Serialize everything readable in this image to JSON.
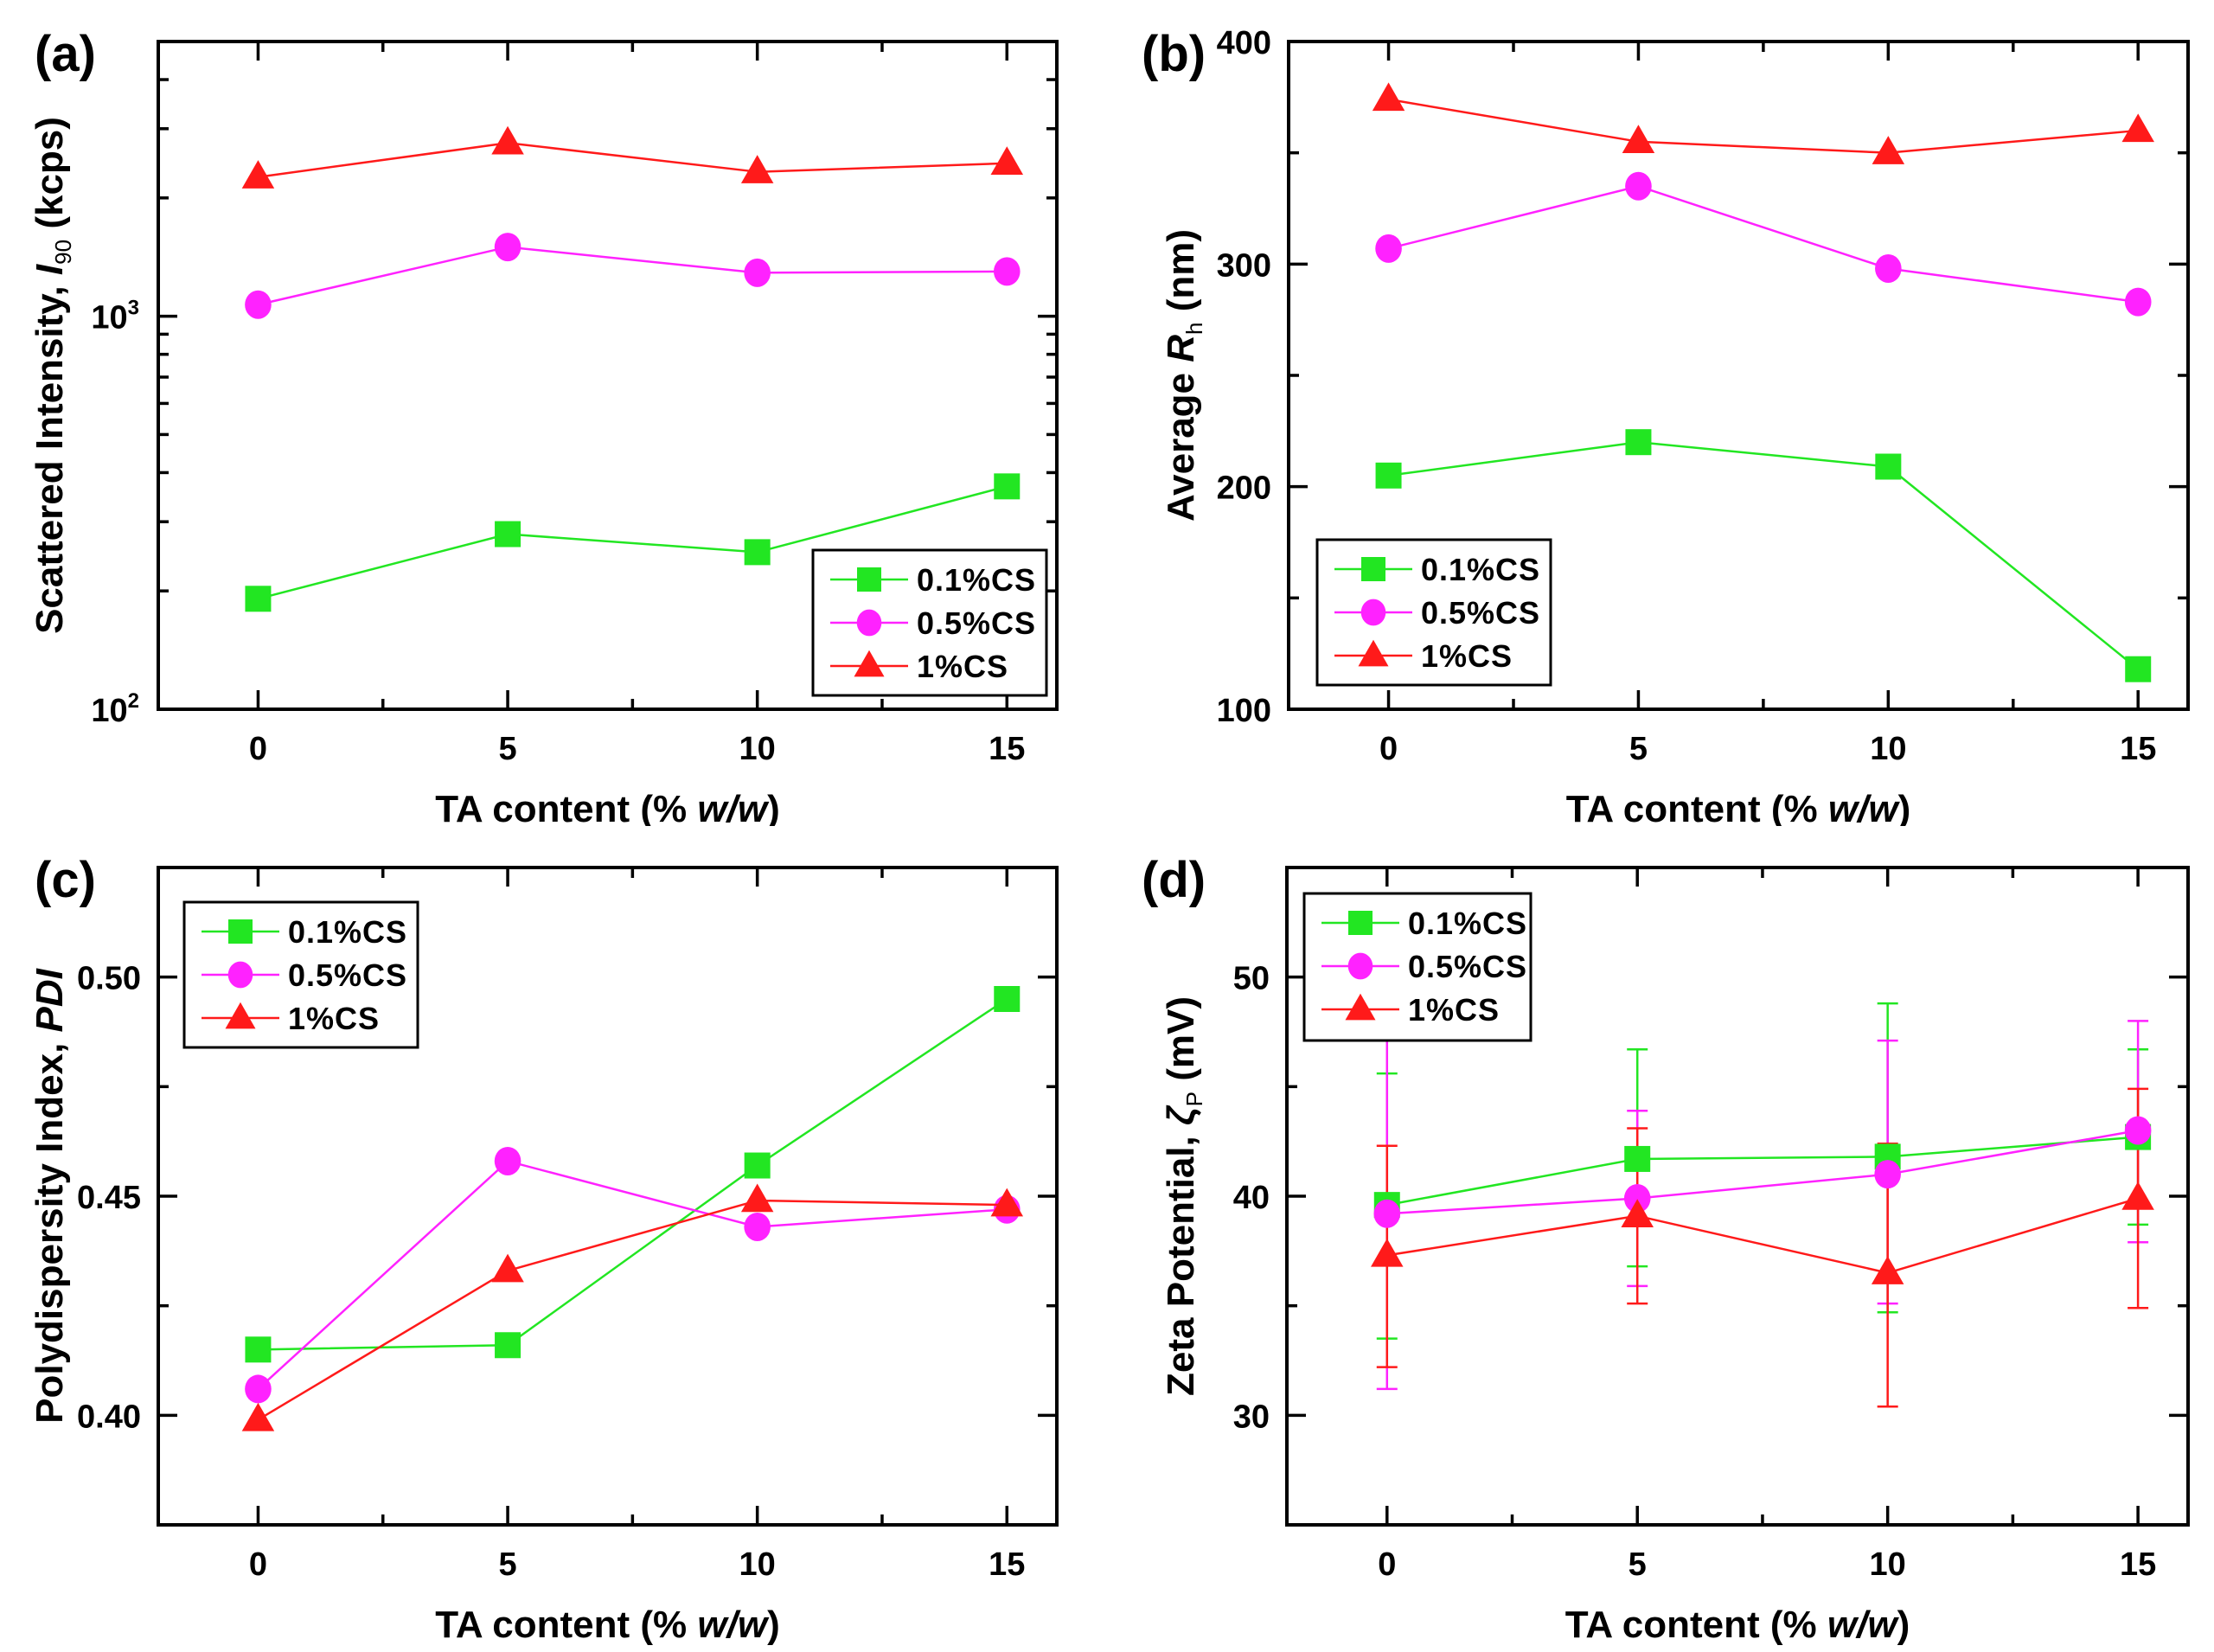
{
  "figure": {
    "series_styles": [
      {
        "name": "0.1%CS",
        "color": "#22e622",
        "marker": "square"
      },
      {
        "name": "0.5%CS",
        "color": "#ff22ff",
        "marker": "circle"
      },
      {
        "name": "1%CS",
        "color": "#ff1a1a",
        "marker": "triangle"
      }
    ]
  },
  "chart_data": [
    {
      "id": "a",
      "panel_label": "(a)",
      "type": "line",
      "title": "",
      "xlabel": "TA content (% w/w)",
      "xlabel_parts": [
        "TA content (% ",
        "w/w",
        ")"
      ],
      "ylabel": "Scattered Intensity, I90 (kcps)",
      "ylabel_parts": [
        "Scattered Intensity, ",
        "I",
        "90",
        " (kcps)"
      ],
      "yscale": "log",
      "x": [
        0,
        5,
        10,
        15
      ],
      "xticks": [
        0,
        5,
        10,
        15
      ],
      "xlim": [
        -2,
        16
      ],
      "ylim": [
        100,
        5000
      ],
      "yticks": [
        100,
        1000
      ],
      "ytick_labels": [
        [
          "10",
          "2"
        ],
        [
          "10",
          "3"
        ]
      ],
      "grid": false,
      "legend_position": "bottom-right",
      "series": [
        {
          "name": "0.1%CS",
          "values": [
            191,
            279,
            251,
            369
          ]
        },
        {
          "name": "0.5%CS",
          "values": [
            1070,
            1500,
            1290,
            1300
          ]
        },
        {
          "name": "1%CS",
          "values": [
            2260,
            2760,
            2330,
            2450
          ]
        }
      ]
    },
    {
      "id": "b",
      "panel_label": "(b)",
      "type": "line",
      "title": "",
      "xlabel": "TA content (% w/w)",
      "xlabel_parts": [
        "TA content (% ",
        "w/w",
        ")"
      ],
      "ylabel": "Average Rh (nm)",
      "ylabel_parts": [
        "Average ",
        "R",
        "h",
        " (nm)"
      ],
      "yscale": "linear",
      "x": [
        0,
        5,
        10,
        15
      ],
      "xticks": [
        0,
        5,
        10,
        15
      ],
      "xlim": [
        -2,
        16
      ],
      "ylim": [
        100,
        400
      ],
      "yticks": [
        100,
        200,
        300,
        400
      ],
      "ytick_labels": [
        "100",
        "200",
        "300",
        "400"
      ],
      "yminor": [
        150,
        250,
        350
      ],
      "grid": false,
      "legend_position": "bottom-left",
      "series": [
        {
          "name": "0.1%CS",
          "values": [
            205,
            220,
            209,
            118
          ]
        },
        {
          "name": "0.5%CS",
          "values": [
            307,
            335,
            298,
            283
          ]
        },
        {
          "name": "1%CS",
          "values": [
            374,
            355,
            350,
            360
          ]
        }
      ]
    },
    {
      "id": "c",
      "panel_label": "(c)",
      "type": "line",
      "title": "",
      "xlabel": "TA content (% w/w)",
      "xlabel_parts": [
        "TA content (% ",
        "w/w",
        ")"
      ],
      "ylabel": "Polydispersity Index, PDI",
      "ylabel_parts": [
        "Polydispersity Index, ",
        "PDI",
        "",
        ""
      ],
      "yscale": "linear",
      "x": [
        0,
        5,
        10,
        15
      ],
      "xticks": [
        0,
        5,
        10,
        15
      ],
      "xlim": [
        -2,
        16
      ],
      "ylim": [
        0.375,
        0.525
      ],
      "yticks": [
        0.4,
        0.45,
        0.5
      ],
      "ytick_labels": [
        "0.40",
        "0.45",
        "0.50"
      ],
      "yminor": [
        0.425,
        0.475
      ],
      "grid": false,
      "legend_position": "top-left",
      "series": [
        {
          "name": "0.1%CS",
          "values": [
            0.415,
            0.416,
            0.457,
            0.495
          ]
        },
        {
          "name": "0.5%CS",
          "values": [
            0.406,
            0.458,
            0.443,
            0.447
          ]
        },
        {
          "name": "1%CS",
          "values": [
            0.399,
            0.433,
            0.449,
            0.448
          ]
        }
      ]
    },
    {
      "id": "d",
      "panel_label": "(d)",
      "type": "line",
      "title": "",
      "xlabel": "TA content (% w/w)",
      "xlabel_parts": [
        "TA content (% ",
        "w/w",
        ")"
      ],
      "ylabel": "Zeta Potential, ζP (mV)",
      "ylabel_parts": [
        "Zeta Potential, ",
        "ζ",
        "P",
        " (mV)"
      ],
      "yscale": "linear",
      "x": [
        0,
        5,
        10,
        15
      ],
      "xticks": [
        0,
        5,
        10,
        15
      ],
      "xlim": [
        -2,
        16
      ],
      "ylim": [
        25,
        55
      ],
      "yticks": [
        30,
        40,
        50
      ],
      "ytick_labels": [
        "30",
        "40",
        "50"
      ],
      "yminor": [
        35,
        45
      ],
      "grid": false,
      "legend_position": "top-left",
      "series": [
        {
          "name": "0.1%CS",
          "values": [
            39.6,
            41.7,
            41.8,
            42.7
          ],
          "error_low": [
            33.5,
            36.8,
            34.7,
            38.7
          ],
          "error_high": [
            45.6,
            46.7,
            48.8,
            46.7
          ]
        },
        {
          "name": "0.5%CS",
          "values": [
            39.2,
            39.9,
            41.0,
            43.0
          ],
          "error_low": [
            31.2,
            35.9,
            35.1,
            37.9
          ],
          "error_high": [
            47.3,
            43.9,
            47.1,
            48.0
          ]
        },
        {
          "name": "1%CS",
          "values": [
            37.3,
            39.1,
            36.5,
            39.9
          ],
          "error_low": [
            32.2,
            35.1,
            30.4,
            34.9
          ],
          "error_high": [
            42.3,
            43.1,
            42.4,
            44.9
          ]
        }
      ]
    }
  ]
}
